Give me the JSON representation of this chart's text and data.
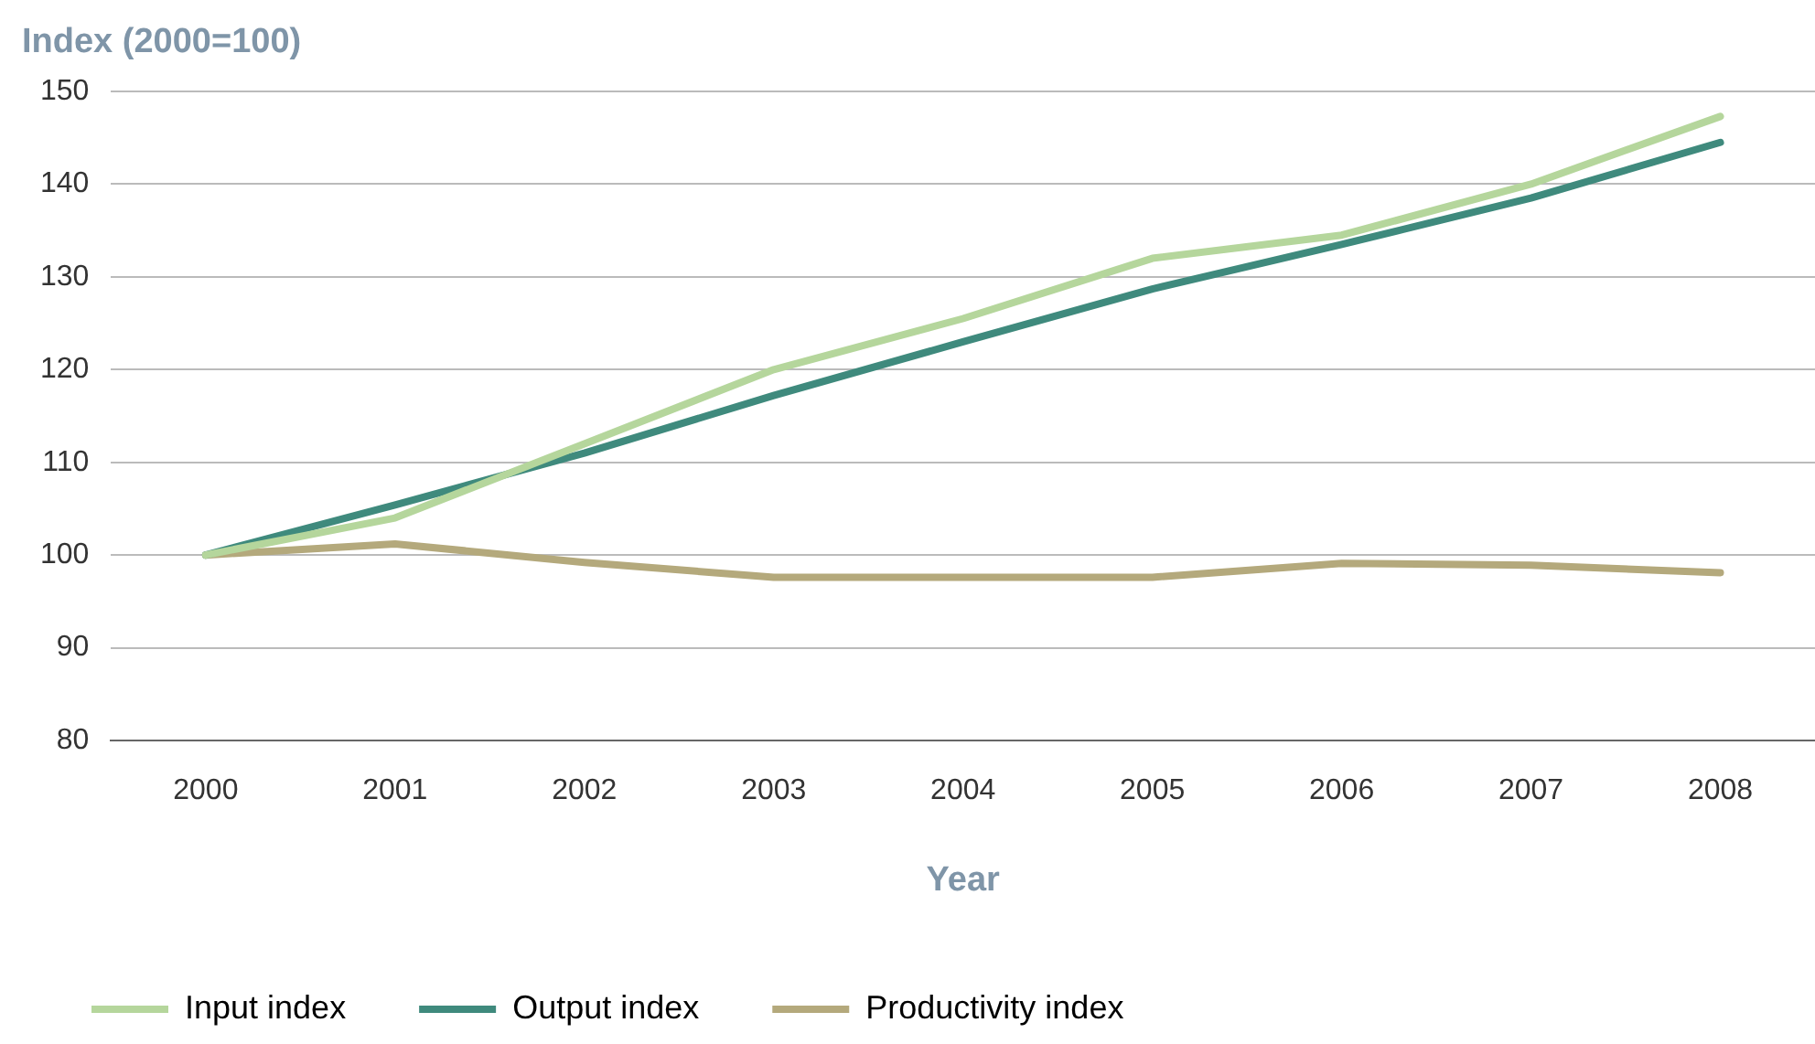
{
  "chart_data": {
    "type": "line",
    "ylabel": "Index (2000=100)",
    "xlabel": "Year",
    "categories": [
      "2000",
      "2001",
      "2002",
      "2003",
      "2004",
      "2005",
      "2006",
      "2007",
      "2008"
    ],
    "series": [
      {
        "name": "Input index",
        "color": "#b5d69c",
        "values": [
          100,
          104,
          112,
          120,
          125.5,
          132,
          134.5,
          140,
          147.3
        ]
      },
      {
        "name": "Output index",
        "color": "#3f8a7d",
        "values": [
          100,
          105.4,
          111,
          117.2,
          123,
          128.7,
          133.5,
          138.5,
          144.5
        ]
      },
      {
        "name": "Productivity index",
        "color": "#b4a97c",
        "values": [
          100,
          101.2,
          99.2,
          97.6,
          97.6,
          97.6,
          99.1,
          98.9,
          98.1
        ]
      }
    ],
    "ylim": [
      80,
      150
    ],
    "yticks": [
      80,
      90,
      100,
      110,
      120,
      130,
      140,
      150
    ],
    "grid": "y",
    "legend": "bottom left",
    "marker": "none",
    "line_style": "solid"
  }
}
